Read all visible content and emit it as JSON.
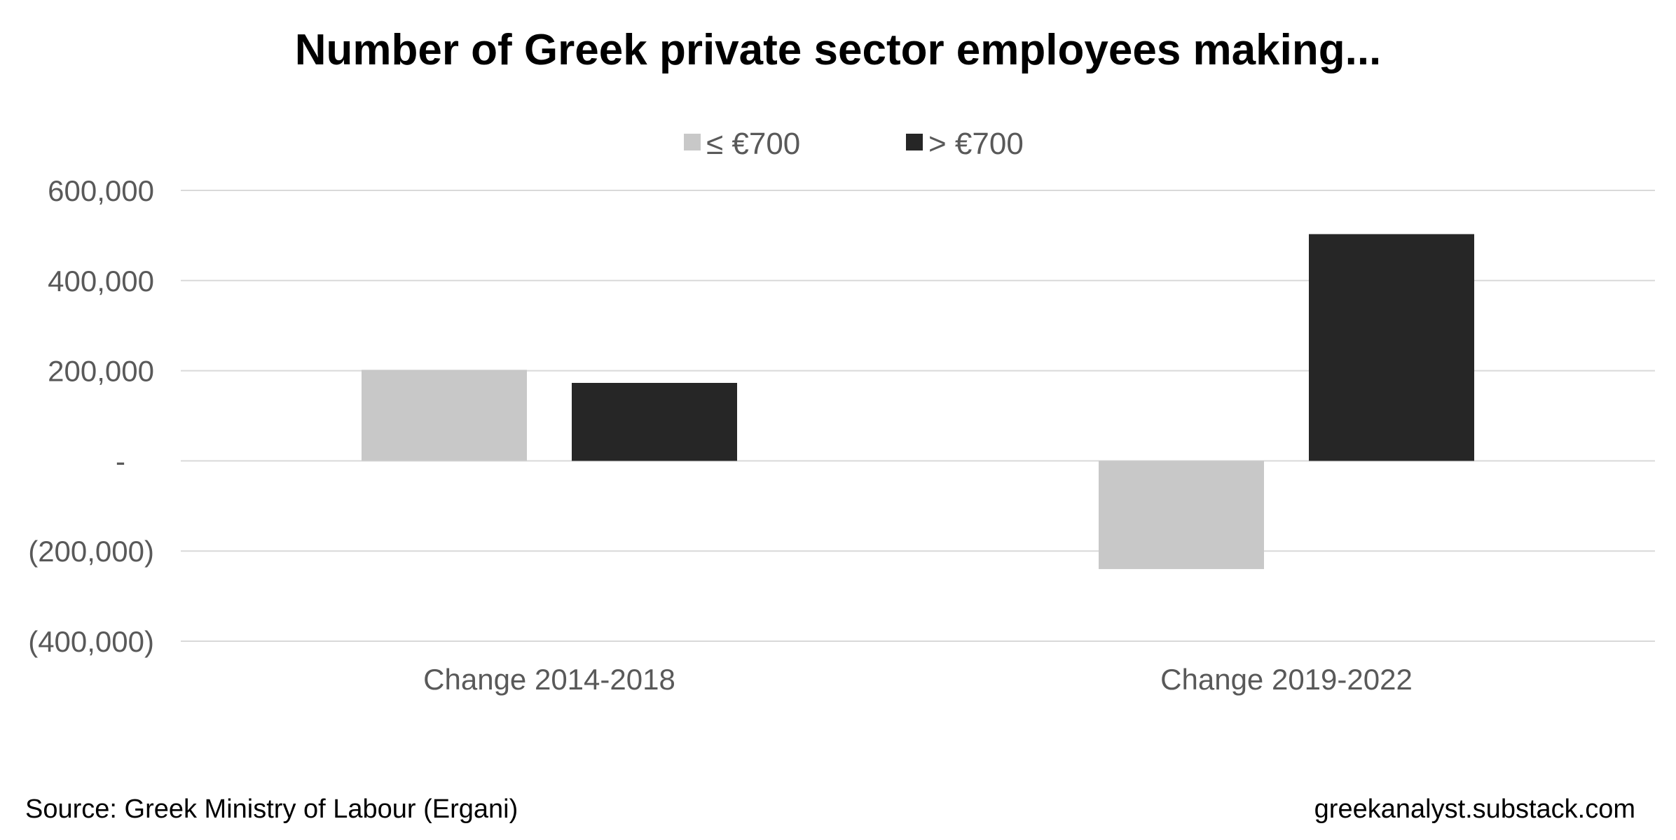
{
  "chart_data": {
    "type": "bar",
    "title": "Number of Greek private sector employees making...",
    "categories": [
      "Change 2014-2018",
      "Change 2019-2022"
    ],
    "series": [
      {
        "name": "≤ €700",
        "values": [
          202000,
          -240000
        ],
        "color": "#c8c8c8"
      },
      {
        "name": "> €700",
        "values": [
          173000,
          503000
        ],
        "color": "#262626"
      }
    ],
    "ylim": [
      -400000,
      600000
    ],
    "yticks": [
      600000,
      400000,
      200000,
      0,
      -200000,
      -400000
    ],
    "ytick_labels": [
      "600,000",
      "400,000",
      "200,000",
      "-",
      "(200,000)",
      "(400,000)"
    ],
    "grid": true,
    "legend_position": "top-center",
    "source": "Source: Greek Ministry of Labour (Ergani)",
    "credit": "greekanalyst.substack.com"
  }
}
